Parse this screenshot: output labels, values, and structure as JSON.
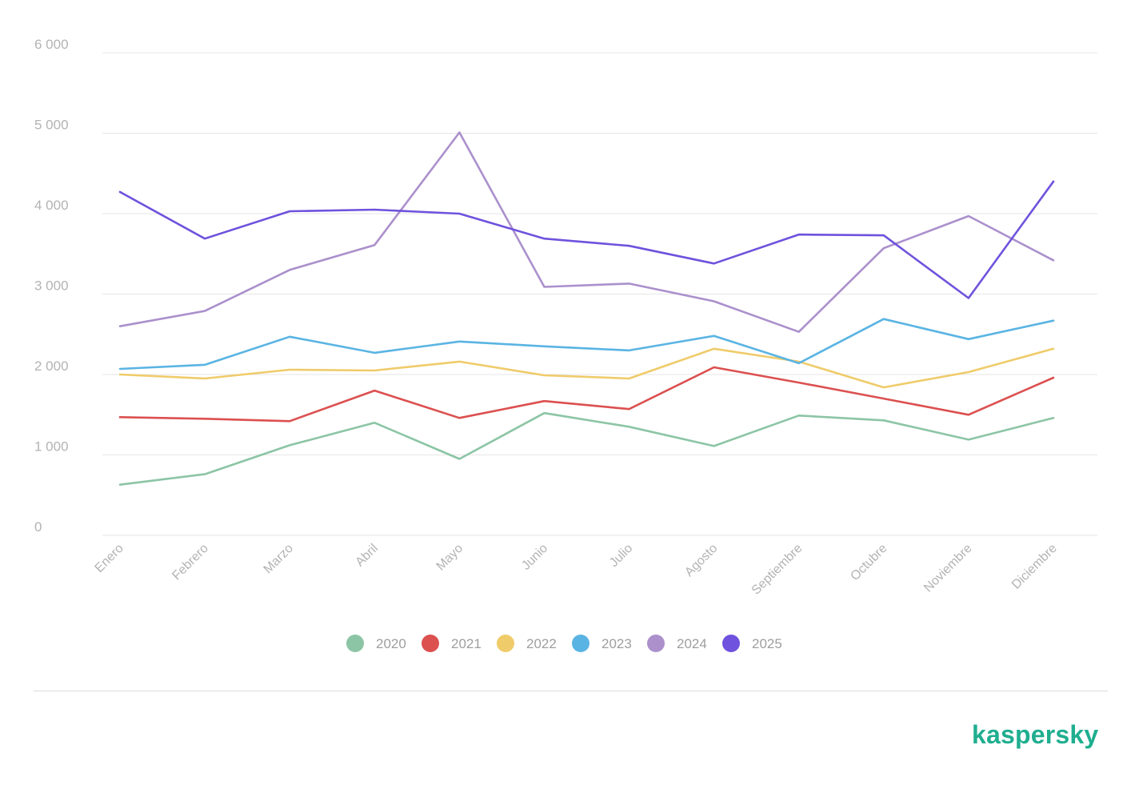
{
  "brand": {
    "name": "kaspersky",
    "color": "#1fae8f"
  },
  "chart_data": {
    "type": "line",
    "title": "",
    "xlabel": "",
    "ylabel": "",
    "ylim": [
      0,
      6000
    ],
    "yticks": [
      0,
      1000,
      2000,
      3000,
      4000,
      5000,
      6000
    ],
    "ytick_labels": [
      "0",
      "1 000",
      "2 000",
      "3 000",
      "4 000",
      "5 000",
      "6 000"
    ],
    "grid": true,
    "legend_position": "bottom-center",
    "categories": [
      "Enero",
      "Febrero",
      "Marzo",
      "Abril",
      "Mayo",
      "Junio",
      "Julio",
      "Agosto",
      "Septiembre",
      "Octubre",
      "Noviembre",
      "Diciembre"
    ],
    "series": [
      {
        "name": "2020",
        "color": "#8cc5a5",
        "values": [
          630,
          760,
          1120,
          1400,
          950,
          1520,
          1350,
          1110,
          1490,
          1430,
          1190,
          1460
        ]
      },
      {
        "name": "2021",
        "color": "#dc5050",
        "values": [
          1470,
          1450,
          1420,
          1800,
          1460,
          1670,
          1570,
          2090,
          1900,
          1700,
          1500,
          1960
        ]
      },
      {
        "name": "2022",
        "color": "#efcb6a",
        "values": [
          2000,
          1950,
          2060,
          2050,
          2160,
          1990,
          1950,
          2320,
          2160,
          1840,
          2030,
          2320
        ]
      },
      {
        "name": "2023",
        "color": "#5ab4e3",
        "values": [
          2070,
          2120,
          2470,
          2270,
          2410,
          2350,
          2300,
          2480,
          2140,
          2690,
          2440,
          2670
        ]
      },
      {
        "name": "2024",
        "color": "#ab90cc",
        "values": [
          2600,
          2790,
          3300,
          3610,
          5010,
          3090,
          3130,
          2910,
          2530,
          3570,
          3970,
          3420
        ]
      },
      {
        "name": "2025",
        "color": "#6f52dd",
        "values": [
          4270,
          3690,
          4030,
          4050,
          4000,
          3690,
          3600,
          3380,
          3740,
          3730,
          2950,
          4400
        ]
      }
    ]
  }
}
